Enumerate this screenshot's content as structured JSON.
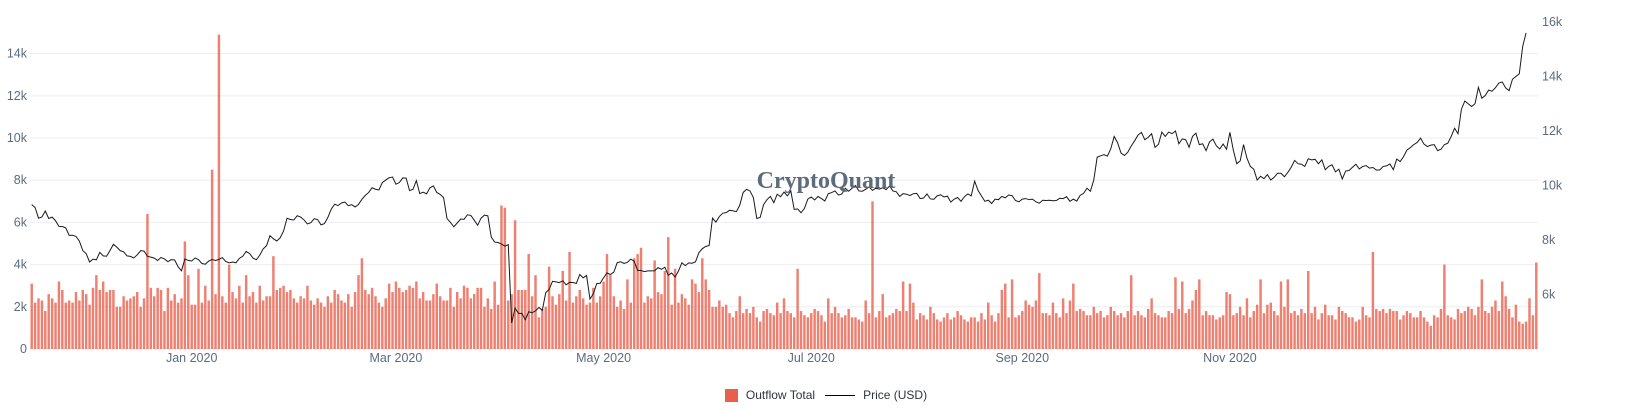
{
  "watermark": "CryptoQuant",
  "legend": {
    "outflow_label": "Outflow Total",
    "price_label": "Price (USD)"
  },
  "colors": {
    "bar": "#e8604c",
    "line": "#1a1a1a",
    "grid": "#ebeef3",
    "tick_text": "#5b6b7f"
  },
  "chart_data": {
    "type": "bar+line",
    "x_ticks": [
      "Jan 2020",
      "Mar 2020",
      "May 2020",
      "Jul 2020",
      "Sep 2020",
      "Nov 2020"
    ],
    "x_tick_positions_day": [
      47,
      107,
      168,
      229,
      291,
      352
    ],
    "y_left_ticks": [
      "0",
      "2k",
      "4k",
      "6k",
      "8k",
      "10k",
      "12k",
      "14k"
    ],
    "y_left_range": [
      0,
      15500
    ],
    "y_right_ticks": [
      "6k",
      "8k",
      "10k",
      "12k",
      "14k",
      "16k"
    ],
    "y_right_range": [
      4000,
      16000
    ],
    "series": [
      {
        "name": "Outflow Total",
        "kind": "bar",
        "axis": "left",
        "values": [
          3100,
          2200,
          2400,
          2300,
          1800,
          2600,
          2400,
          2200,
          3200,
          2800,
          2200,
          2300,
          2200,
          2700,
          2300,
          2800,
          2600,
          2100,
          2900,
          3500,
          2800,
          3200,
          2700,
          2800,
          2800,
          2000,
          2000,
          2500,
          2300,
          2400,
          2500,
          2700,
          2000,
          2400,
          6400,
          2900,
          2500,
          2900,
          2800,
          1800,
          2900,
          2300,
          2600,
          2200,
          2400,
          5100,
          3500,
          2100,
          2100,
          3800,
          2200,
          3000,
          2300,
          8500,
          2600,
          14900,
          2500,
          2200,
          4000,
          2700,
          2400,
          3000,
          2200,
          3500,
          2500,
          2700,
          2200,
          3000,
          2300,
          2500,
          2500,
          4400,
          2800,
          2900,
          3000,
          2700,
          2800,
          2400,
          2200,
          2500,
          2400,
          3000,
          2300,
          2100,
          2400,
          2200,
          2000,
          2500,
          2200,
          2800,
          2600,
          2300,
          2200,
          2600,
          2000,
          2700,
          3500,
          4300,
          2800,
          2600,
          2900,
          2500,
          2200,
          2000,
          2400,
          3100,
          2700,
          3200,
          2900,
          2700,
          2800,
          3000,
          2900,
          3200,
          2400,
          2700,
          2300,
          2300,
          2600,
          3100,
          2500,
          2300,
          2300,
          2900,
          2000,
          2700,
          2400,
          3000,
          2900,
          2400,
          2600,
          2900,
          2900,
          2000,
          2400,
          1900,
          3200,
          2100,
          6800,
          6700,
          2300,
          2600,
          6100,
          2800,
          2800,
          2800,
          4500,
          2500,
          3500,
          1500,
          1900,
          2000,
          3900,
          2500,
          2100,
          2600,
          3700,
          2300,
          4600,
          2200,
          2500,
          2800,
          2400,
          2100,
          2200,
          2900,
          2200,
          2500,
          3200,
          4500,
          3500,
          2500,
          2000,
          2300,
          1900,
          3300,
          2200,
          4300,
          4500,
          4800,
          2200,
          2500,
          2400,
          4200,
          2700,
          2600,
          3700,
          5300,
          2100,
          3800,
          2200,
          2600,
          2400,
          2100,
          3300,
          3100,
          2700,
          4300,
          3300,
          2800,
          2000,
          2000,
          2300,
          2000,
          2100,
          1700,
          1500,
          1800,
          2500,
          1700,
          1900,
          1700,
          2000,
          1500,
          1300,
          1800,
          1900,
          1700,
          1600,
          2200,
          1700,
          2400,
          1800,
          1700,
          1500,
          3800,
          1800,
          1600,
          1500,
          1700,
          1900,
          1800,
          1600,
          1300,
          2400,
          1700,
          2000,
          1700,
          1500,
          1600,
          1900,
          1500,
          1500,
          1400,
          1300,
          2300,
          1700,
          7000,
          1500,
          1800,
          2600,
          1500,
          1600,
          1700,
          1900,
          1800,
          3200,
          1800,
          3100,
          2200,
          1400,
          1700,
          1600,
          1400,
          2000,
          1700,
          1400,
          1300,
          1500,
          1700,
          1400,
          1500,
          1800,
          1600,
          1400,
          1300,
          1500,
          1500,
          1300,
          1700,
          1400,
          2200,
          1600,
          1300,
          1700,
          2800,
          3100,
          1500,
          3300,
          1500,
          1600,
          1800,
          2300,
          2100,
          2000,
          2300,
          3600,
          1700,
          1700,
          1600,
          2200,
          1700,
          1500,
          2400,
          1700,
          2300,
          3100,
          1800,
          1900,
          1800,
          1600,
          1600,
          2000,
          1700,
          1800,
          1500,
          1600,
          2000,
          1800,
          1600,
          1700,
          1500,
          1800,
          3500,
          1600,
          1800,
          1600,
          1500,
          1900,
          2400,
          1700,
          1600,
          1500,
          1500,
          1800,
          1700,
          3400,
          1900,
          3200,
          1700,
          1900,
          2300,
          2800,
          3300,
          1600,
          1800,
          1600,
          1600,
          1400,
          1500,
          1600,
          2700,
          2600,
          1600,
          1700,
          2000,
          1600,
          2400,
          1500,
          1800,
          2100,
          3300,
          1700,
          2100,
          2200,
          1800,
          1600,
          3200,
          2000,
          3300,
          1700,
          1800,
          1600,
          1900,
          1700,
          3700,
          1700,
          2000,
          1400,
          1700,
          2100,
          1600,
          1600,
          1400,
          2000,
          1800,
          1700,
          1500,
          1500,
          1300,
          1400,
          2000,
          1600,
          1500,
          4600,
          1900,
          1800,
          1900,
          1700,
          1900,
          1800,
          1800,
          1400,
          1600,
          1800,
          1700,
          1500,
          1500,
          1800,
          1500,
          1300,
          1100,
          1600,
          1500,
          1900,
          4000,
          1600,
          1500,
          1400,
          1900,
          1700,
          1800,
          2000,
          1900,
          1600,
          2000,
          3300,
          1800,
          1700,
          2000,
          2300,
          1800,
          3200,
          2500,
          1900,
          1500,
          2100,
          1300,
          1200,
          1300,
          2400,
          1600,
          4100
        ],
        "color": "#e8604c"
      },
      {
        "name": "Price (USD)",
        "kind": "line",
        "axis": "right",
        "values": [
          9300,
          9192,
          8800,
          8844,
          9063,
          8790,
          8840,
          8707,
          8501,
          8496,
          8443,
          8170,
          8176,
          8133,
          7960,
          7615,
          7500,
          7193,
          7298,
          7274,
          7548,
          7417,
          7405,
          7613,
          7841,
          7738,
          7609,
          7568,
          7416,
          7399,
          7341,
          7456,
          7608,
          7592,
          7402,
          7372,
          7336,
          7250,
          7361,
          7305,
          7205,
          7278,
          7267,
          7021,
          6867,
          7306,
          7251,
          7229,
          7342,
          7280,
          7136,
          7110,
          7226,
          7282,
          7250,
          7290,
          7354,
          7212,
          7161,
          7192,
          7164,
          7326,
          7403,
          7582,
          7505,
          7337,
          7274,
          7444,
          7672,
          7792,
          8158,
          8042,
          7965,
          8082,
          8331,
          8797,
          8752,
          8734,
          8893,
          8841,
          8737,
          8590,
          8633,
          8784,
          8747,
          8555,
          8600,
          8829,
          9134,
          9314,
          9262,
          9359,
          9394,
          9259,
          9298,
          9212,
          9308,
          9494,
          9637,
          9745,
          9917,
          9863,
          9836,
          10106,
          10199,
          10287,
          10310,
          10046,
          10109,
          10279,
          10272,
          9812,
          9857,
          10181,
          9702,
          9754,
          9694,
          9917,
          9986,
          9744,
          9672,
          9555,
          8787,
          8650,
          8486,
          8624,
          8771,
          8759,
          8927,
          8902,
          8727,
          8540,
          8800,
          8913,
          8887,
          8108,
          7924,
          7908,
          7853,
          7778,
          7826,
          4956,
          5500,
          5306,
          5308,
          5076,
          5368,
          5330,
          5398,
          5525,
          5420,
          6065,
          6189,
          6485,
          6464,
          6438,
          6501,
          6356,
          6444,
          6440,
          6409,
          6734,
          6609,
          6700,
          5830,
          6030,
          6400,
          6412,
          6615,
          6793,
          6733,
          6818,
          7167,
          7200,
          7140,
          7182,
          7300,
          7220,
          6880,
          6879,
          6842,
          6866,
          6868,
          6873,
          6986,
          6926,
          7000,
          6710,
          6788,
          6640,
          6862,
          7162,
          7060,
          7159,
          7146,
          7199,
          7535,
          7682,
          7761,
          7798,
          8803,
          8656,
          8862,
          8985,
          9003,
          9089,
          9073,
          9038,
          9279,
          9745,
          9859,
          9800,
          9560,
          8790,
          8830,
          9300,
          9480,
          9600,
          9370,
          9680,
          9590,
          9760,
          9620,
          9800,
          9120,
          9140,
          9000,
          9160,
          9500,
          9580,
          9470,
          9600,
          9520,
          9430,
          9700,
          9740,
          9800,
          9650,
          9690,
          9900,
          9790,
          9900,
          10000,
          9800,
          9790,
          9860,
          9950,
          9820,
          9900,
          9870,
          9920,
          9850,
          9980,
          9800,
          9770,
          9600,
          9700,
          9680,
          9630,
          9700,
          9710,
          9520,
          9540,
          9690,
          9510,
          9490,
          9620,
          9660,
          9580,
          9610,
          9390,
          9500,
          9560,
          9420,
          9590,
          9690,
          9620,
          10160,
          9820,
          9620,
          9420,
          9460,
          9340,
          9500,
          9480,
          9600,
          9550,
          9650,
          9630,
          9450,
          9400,
          9500,
          9520,
          9480,
          9500,
          9400,
          9350,
          9460,
          9450,
          9460,
          9440,
          9450,
          9530,
          9520,
          9590,
          9420,
          9500,
          9430,
          9640,
          9710,
          9900,
          9790,
          10200,
          11040,
          11090,
          11130,
          11080,
          11350,
          11800,
          11570,
          11190,
          11100,
          11220,
          11450,
          11640,
          11850,
          11950,
          11680,
          11770,
          11900,
          11400,
          11510,
          11960,
          11800,
          11960,
          11900,
          12000,
          11530,
          11710,
          11680,
          11400,
          11800,
          11920,
          11500,
          11530,
          11280,
          11600,
          11700,
          11460,
          11340,
          11520,
          11330,
          11950,
          11300,
          10800,
          10900,
          11500,
          11000,
          10700,
          10600,
          10200,
          10340,
          10250,
          10400,
          10200,
          10300,
          10450,
          10450,
          10320,
          10480,
          10670,
          10920,
          10800,
          10780,
          10700,
          10980,
          10940,
          10960,
          10800,
          10940,
          10580,
          10700,
          10760,
          10500,
          10600,
          10240,
          10530,
          10550,
          10670,
          10780,
          10610,
          10700,
          10730,
          10640,
          10660,
          10570,
          10570,
          10700,
          10720,
          10790,
          10580,
          10970,
          10880,
          11060,
          11300,
          11390,
          11500,
          11580,
          11740,
          11520,
          11430,
          11480,
          11500,
          11280,
          11330,
          11500,
          11550,
          11800,
          12100,
          11900,
          12800,
          13100,
          13000,
          12900,
          13000,
          13600,
          13200,
          13300,
          13500,
          13460,
          13590,
          13760,
          13800,
          13580,
          13480,
          13900,
          14000,
          14100,
          15100,
          15600
        ]
      }
    ]
  }
}
